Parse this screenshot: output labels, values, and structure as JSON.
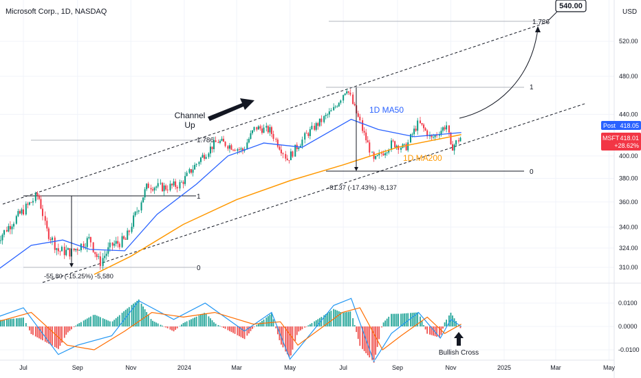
{
  "header": {
    "title": "Microsoft Corp., 1D, NASDAQ",
    "currency": "USD"
  },
  "colors": {
    "up": "#089981",
    "down": "#f23645",
    "ma50": "#2962ff",
    "ma200": "#ff9800",
    "macd": "#2196f3",
    "signal": "#ff6d00",
    "hist_up": "#26a69a",
    "hist_down": "#ef5350",
    "post_badge": "#2962ff",
    "ticker_badge": "#f23645"
  },
  "badges": {
    "post_label": "Post",
    "post_value": "418.05",
    "ticker": "MSFT",
    "price": "418.01",
    "change": "+28.62%",
    "target": "540.00"
  },
  "annotations": {
    "channel": [
      "Channel",
      "Up"
    ],
    "ma50": "1D MA50",
    "ma200": "1D MA200",
    "bullish_cross": "Bullish Cross",
    "fib_top": "1.786",
    "fib_mid": "1.786",
    "fib1_a": "1",
    "fib1_b": "1",
    "fib0_a": "0",
    "fib0_b": "0",
    "measure_a": "-55.80 (-15.25%) -5,580",
    "measure_b": "-81.37 (-17.43%) -8,137"
  },
  "chart_data": {
    "type": "candlestick",
    "title": "Microsoft Corp., 1D, NASDAQ",
    "price_axis_ticks": [
      310,
      324,
      340,
      360,
      380,
      400,
      440,
      480,
      520
    ],
    "macd_axis_ticks": [
      "0.0100",
      "0.0000",
      "-0.0100"
    ],
    "x_tick_labels": [
      "Jul",
      "Sep",
      "Nov",
      "2024",
      "Mar",
      "May",
      "Jul",
      "Sep",
      "Nov",
      "2025",
      "Mar",
      "May"
    ],
    "price_path": [
      [
        "2023-06-01",
        330
      ],
      [
        "2023-06-20",
        345
      ],
      [
        "2023-07-18",
        366
      ],
      [
        "2023-07-27",
        338
      ],
      [
        "2023-08-10",
        322
      ],
      [
        "2023-08-25",
        321
      ],
      [
        "2023-09-15",
        331
      ],
      [
        "2023-09-26",
        313
      ],
      [
        "2023-10-10",
        326
      ],
      [
        "2023-10-26",
        330
      ],
      [
        "2023-11-20",
        374
      ],
      [
        "2023-12-10",
        372
      ],
      [
        "2023-12-28",
        375
      ],
      [
        "2024-01-20",
        398
      ],
      [
        "2024-02-08",
        414
      ],
      [
        "2024-03-08",
        405
      ],
      [
        "2024-03-22",
        427
      ],
      [
        "2024-04-08",
        424
      ],
      [
        "2024-04-28",
        397
      ],
      [
        "2024-05-20",
        420
      ],
      [
        "2024-06-20",
        445
      ],
      [
        "2024-07-05",
        467
      ],
      [
        "2024-07-25",
        420
      ],
      [
        "2024-08-05",
        395
      ],
      [
        "2024-08-26",
        412
      ],
      [
        "2024-09-10",
        407
      ],
      [
        "2024-09-25",
        432
      ],
      [
        "2024-10-10",
        416
      ],
      [
        "2024-10-28",
        430
      ],
      [
        "2024-11-01",
        407
      ],
      [
        "2024-11-13",
        418
      ]
    ],
    "ma50_path": [
      [
        "2023-06-01",
        308
      ],
      [
        "2023-07-10",
        326
      ],
      [
        "2023-08-15",
        330
      ],
      [
        "2023-09-15",
        323
      ],
      [
        "2023-10-25",
        322
      ],
      [
        "2023-12-01",
        350
      ],
      [
        "2024-01-15",
        375
      ],
      [
        "2024-02-20",
        400
      ],
      [
        "2024-04-01",
        412
      ],
      [
        "2024-05-15",
        408
      ],
      [
        "2024-07-10",
        435
      ],
      [
        "2024-08-10",
        425
      ],
      [
        "2024-09-20",
        418
      ],
      [
        "2024-11-13",
        422
      ]
    ],
    "ma200_path": [
      [
        "2023-09-20",
        305
      ],
      [
        "2023-11-01",
        318
      ],
      [
        "2023-12-31",
        342
      ],
      [
        "2024-03-01",
        362
      ],
      [
        "2024-05-01",
        378
      ],
      [
        "2024-07-01",
        392
      ],
      [
        "2024-09-01",
        408
      ],
      [
        "2024-11-13",
        420
      ]
    ],
    "macd_path": [
      [
        "2023-06-01",
        0.004
      ],
      [
        "2023-07-01",
        0.008
      ],
      [
        "2023-08-10",
        -0.012
      ],
      [
        "2023-09-01",
        -0.008
      ],
      [
        "2023-10-10",
        -0.004
      ],
      [
        "2023-11-10",
        0.011
      ],
      [
        "2023-12-20",
        0.003
      ],
      [
        "2024-01-25",
        0.01
      ],
      [
        "2024-03-10",
        -0.002
      ],
      [
        "2024-04-10",
        0.006
      ],
      [
        "2024-05-01",
        -0.014
      ],
      [
        "2024-06-20",
        0.009
      ],
      [
        "2024-07-10",
        0.012
      ],
      [
        "2024-08-05",
        -0.015
      ],
      [
        "2024-08-25",
        -0.003
      ],
      [
        "2024-09-25",
        0.006
      ],
      [
        "2024-10-20",
        -0.005
      ],
      [
        "2024-11-01",
        0.003
      ],
      [
        "2024-11-13",
        0.0
      ]
    ],
    "signal_path": [
      [
        "2023-06-01",
        0.002
      ],
      [
        "2023-07-10",
        0.006
      ],
      [
        "2023-08-20",
        -0.008
      ],
      [
        "2023-09-20",
        -0.01
      ],
      [
        "2023-10-25",
        -0.002
      ],
      [
        "2023-11-25",
        0.006
      ],
      [
        "2023-12-31",
        0.004
      ],
      [
        "2024-02-05",
        0.006
      ],
      [
        "2024-03-20",
        0.001
      ],
      [
        "2024-04-20",
        0.002
      ],
      [
        "2024-05-10",
        -0.008
      ],
      [
        "2024-06-30",
        0.006
      ],
      [
        "2024-07-20",
        0.008
      ],
      [
        "2024-08-15",
        -0.01
      ],
      [
        "2024-09-05",
        -0.004
      ],
      [
        "2024-10-05",
        0.004
      ],
      [
        "2024-10-25",
        -0.003
      ],
      [
        "2024-11-13",
        0.001
      ]
    ]
  }
}
